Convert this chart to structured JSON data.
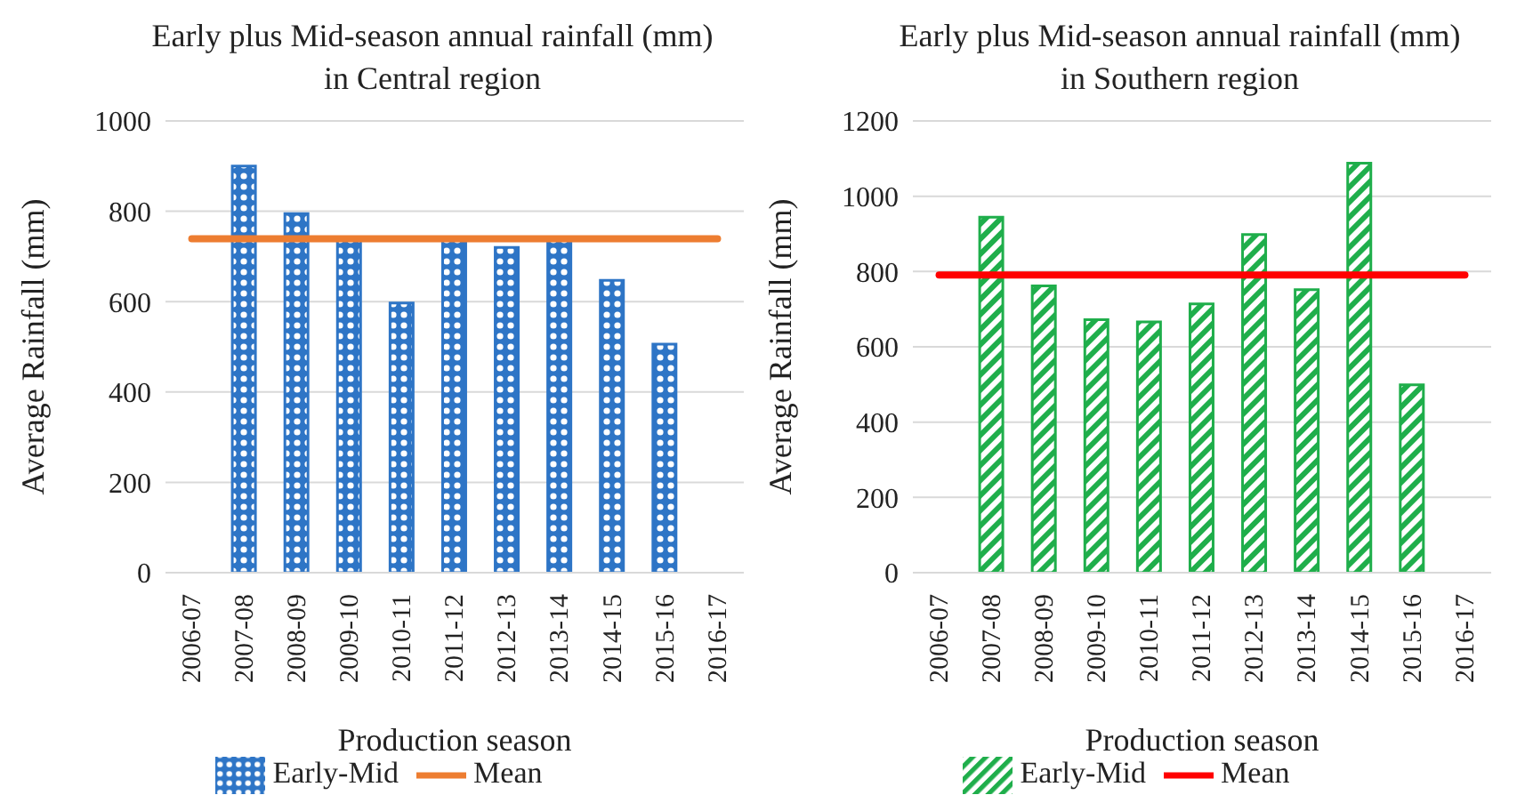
{
  "chart_data": [
    {
      "type": "bar",
      "title": "Early plus Mid-season annual rainfall (mm) in Central region",
      "xlabel": "Production season",
      "ylabel": "Average Rainfall (mm)",
      "categories": [
        "2006-07",
        "2007-08",
        "2008-09",
        "2009-10",
        "2010-11",
        "2011-12",
        "2012-13",
        "2013-14",
        "2014-15",
        "2015-16",
        "2016-17"
      ],
      "series": [
        {
          "name": "Early-Mid",
          "color": "#2e75c6",
          "values": [
            null,
            900,
            795,
            735,
            597,
            735,
            720,
            735,
            647,
            506,
            null
          ]
        },
        {
          "name": "Mean",
          "type": "line",
          "color": "#ed7d31",
          "values": [
            739,
            739,
            739,
            739,
            739,
            739,
            739,
            739,
            739,
            739,
            739
          ]
        }
      ],
      "ylim": [
        0,
        1000
      ],
      "yticks": [
        0,
        200,
        400,
        600,
        800,
        1000
      ],
      "grid": "y",
      "legend": "bottom",
      "marker": "none"
    },
    {
      "type": "bar",
      "title": "Early plus Mid-season annual rainfall (mm) in Southern region",
      "xlabel": "Production season",
      "ylabel": "Average Rainfall (mm)",
      "categories": [
        "2006-07",
        "2007-08",
        "2008-09",
        "2009-10",
        "2010-11",
        "2011-12",
        "2012-13",
        "2013-14",
        "2014-15",
        "2015-16",
        "2016-17"
      ],
      "series": [
        {
          "name": "Early-Mid",
          "color": "#1fae4b",
          "values": [
            null,
            944,
            762,
            672,
            666,
            714,
            898,
            752,
            1088,
            499,
            null
          ]
        },
        {
          "name": "Mean",
          "type": "line",
          "color": "#ff0000",
          "values": [
            791,
            791,
            791,
            791,
            791,
            791,
            791,
            791,
            791,
            791,
            791
          ]
        }
      ],
      "ylim": [
        0,
        1200
      ],
      "yticks": [
        0,
        200,
        400,
        600,
        800,
        1000,
        1200
      ],
      "grid": "y",
      "legend": "bottom",
      "marker": "none"
    }
  ]
}
